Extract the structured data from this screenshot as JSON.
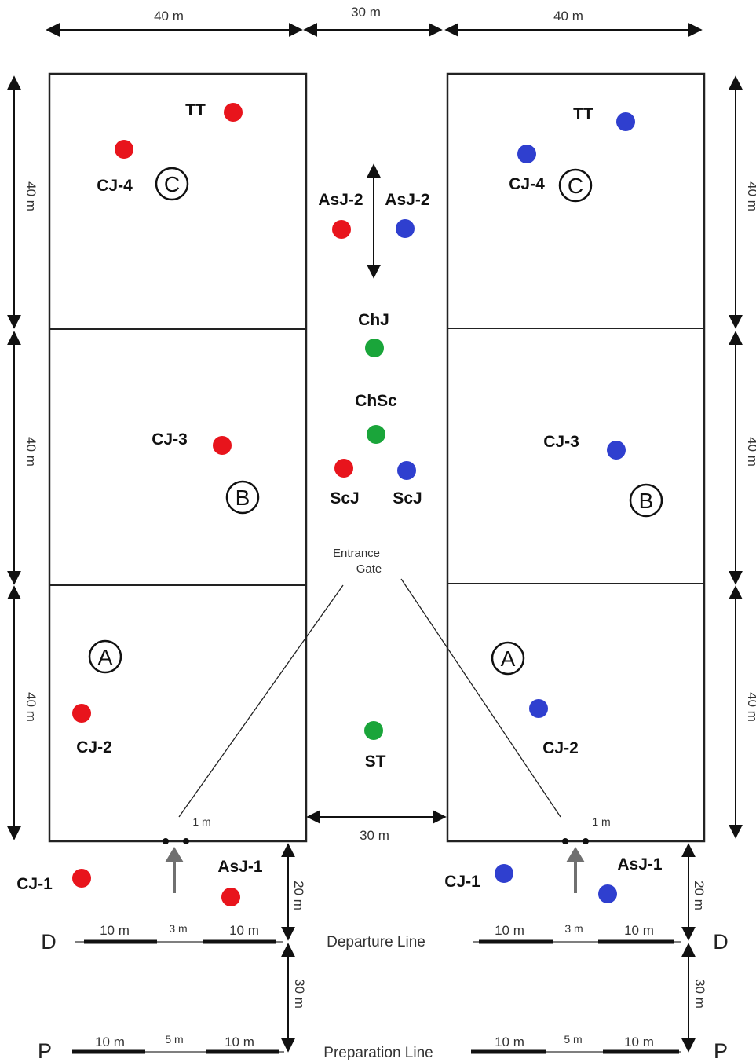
{
  "dimensions": {
    "top_left_width": "40 m",
    "top_middle_width": "30 m",
    "top_right_width": "40 m",
    "section_height": "40 m",
    "middle_gap": "30 m",
    "gate_width": "1 m",
    "start_to_departure": "20 m",
    "departure_to_preparation": "30 m",
    "lane_segment": "10 m",
    "departure_gap": "3 m",
    "preparation_gap": "5 m"
  },
  "zones": {
    "a": "A",
    "b": "B",
    "c": "C"
  },
  "lines": {
    "departure": "Departure Line",
    "preparation": "Preparation Line",
    "departure_marker": "D",
    "preparation_marker": "P"
  },
  "gate": {
    "line1": "Entrance",
    "line2": "Gate"
  },
  "roles": {
    "tt": "TT",
    "cj4": "CJ-4",
    "cj3": "CJ-3",
    "cj2": "CJ-2",
    "cj1": "CJ-1",
    "asj2": "AsJ-2",
    "asj1": "AsJ-1",
    "chj": "ChJ",
    "chsc": "ChSc",
    "scj": "ScJ",
    "st": "ST"
  },
  "colors": {
    "left_team": "#e8141c",
    "right_team": "#2f3fcf",
    "officials": "#1aa53a",
    "arrow_gray": "#707070"
  }
}
